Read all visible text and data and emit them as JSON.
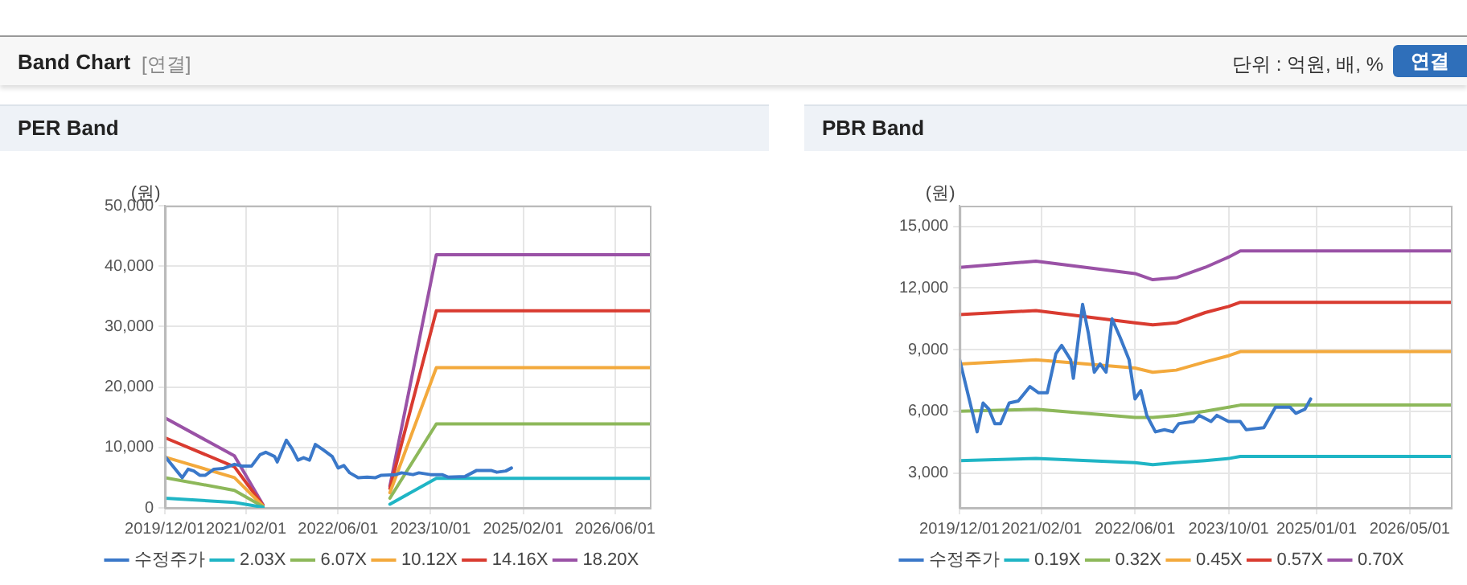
{
  "chart_data": [
    {
      "type": "other",
      "title": "Band Chart",
      "annotations": [
        "[연결]",
        "단위 : 억원, 배, %",
        "연결"
      ]
    },
    {
      "type": "line",
      "title": "PER Band",
      "ylabel": "(원)",
      "xlim": [
        "2019-12-01",
        "2026-12-01"
      ],
      "xticks": [
        {
          "value": "2019-12-01",
          "label": "2019/12/01"
        },
        {
          "value": "2021-02-01",
          "label": "2021/02/01"
        },
        {
          "value": "2022-06-01",
          "label": "2022/06/01"
        },
        {
          "value": "2023-10-01",
          "label": "2023/10/01"
        },
        {
          "value": "2025-02-01",
          "label": "2025/02/01"
        },
        {
          "value": "2026-06-01",
          "label": "2026/06/01"
        }
      ],
      "ylim": [
        0,
        50000
      ],
      "yticks": [
        0,
        {
          "value": 10000,
          "label": "10,000"
        },
        {
          "value": 20000,
          "label": "20,000"
        },
        {
          "value": 30000,
          "label": "30,000"
        },
        {
          "value": 40000,
          "label": "40,000"
        },
        {
          "value": 50000,
          "label": "50,000"
        }
      ],
      "grid": true,
      "legend": "bottom",
      "marker": "none",
      "line_style": "solid",
      "x": [
        "2019-12-01",
        "2020-12-01",
        "2021-05-01",
        "2022-04-01",
        "2023-03-01",
        "2023-11-01",
        "2026-12-01"
      ],
      "series": [
        {
          "name": "수정주가",
          "color": "#3a78c9",
          "x": [
            "2019-12-01",
            "2020-03-01",
            "2020-04-01",
            "2020-05-01",
            "2020-06-01",
            "2020-07-01",
            "2020-08-15",
            "2020-10-01",
            "2020-12-01",
            "2021-01-15",
            "2021-03-01",
            "2021-04-15",
            "2021-05-15",
            "2021-07-01",
            "2021-07-15",
            "2021-09-01",
            "2021-10-01",
            "2021-11-01",
            "2021-12-01",
            "2022-01-01",
            "2022-02-01",
            "2022-03-15",
            "2022-05-01",
            "2022-06-01",
            "2022-07-01",
            "2022-08-01",
            "2022-09-15",
            "2022-11-01",
            "2022-12-15",
            "2023-01-15",
            "2023-04-01",
            "2023-05-01",
            "2023-07-01",
            "2023-08-01",
            "2023-10-01",
            "2023-12-01",
            "2024-01-01",
            "2024-04-01",
            "2024-06-01",
            "2024-08-15",
            "2024-09-15",
            "2024-11-01",
            "2024-12-01"
          ],
          "values": [
            8500,
            5000,
            6400,
            6100,
            5400,
            5400,
            6400,
            6500,
            7200,
            6900,
            6900,
            8800,
            9200,
            8500,
            7600,
            11200,
            9800,
            7900,
            8300,
            7900,
            10500,
            9600,
            8500,
            6600,
            7000,
            5800,
            5000,
            5100,
            5000,
            5400,
            5500,
            5800,
            5500,
            5800,
            5500,
            5500,
            5100,
            5200,
            6200,
            6200,
            5900,
            6100,
            6600
          ]
        },
        {
          "name": "2.03X",
          "color": "#1fb5c5",
          "values": [
            1600,
            900,
            100,
            null,
            600,
            4900,
            4900
          ]
        },
        {
          "name": "6.07X",
          "color": "#8db85a",
          "values": [
            5000,
            2900,
            200,
            null,
            1600,
            13900,
            13900
          ]
        },
        {
          "name": "10.12X",
          "color": "#f3a93c",
          "values": [
            8400,
            5000,
            300,
            null,
            2500,
            23200,
            23200
          ]
        },
        {
          "name": "14.16X",
          "color": "#d93b30",
          "values": [
            11600,
            6800,
            400,
            null,
            3200,
            32600,
            32600
          ]
        },
        {
          "name": "18.20X",
          "color": "#9a52a6",
          "values": [
            14900,
            8600,
            500,
            null,
            3600,
            41900,
            41900
          ]
        }
      ]
    },
    {
      "type": "line",
      "title": "PBR Band",
      "ylabel": "(원)",
      "xlim": [
        "2019-12-01",
        "2026-12-01"
      ],
      "xticks": [
        {
          "value": "2019-12-01",
          "label": "2019/12/01"
        },
        {
          "value": "2021-02-01",
          "label": "2021/02/01"
        },
        {
          "value": "2022-06-01",
          "label": "2022/06/01"
        },
        {
          "value": "2023-10-01",
          "label": "2023/10/01"
        },
        {
          "value": "2025-01-01",
          "label": "2025/01/01"
        },
        {
          "value": "2026-05-01",
          "label": "2026/05/01"
        }
      ],
      "ylim": [
        1300,
        16000
      ],
      "yticks": [
        {
          "value": 3000,
          "label": "3,000"
        },
        {
          "value": 6000,
          "label": "6,000"
        },
        {
          "value": 9000,
          "label": "9,000"
        },
        {
          "value": 12000,
          "label": "12,000"
        },
        {
          "value": 15000,
          "label": "15,000"
        }
      ],
      "grid": true,
      "legend": "bottom",
      "marker": "none",
      "line_style": "solid",
      "x": [
        "2019-12-01",
        "2021-01-01",
        "2022-06-01",
        "2022-09-01",
        "2023-01-01",
        "2023-06-01",
        "2023-10-01",
        "2023-12-01",
        "2026-12-01"
      ],
      "series": [
        {
          "name": "수정주가",
          "color": "#3a78c9",
          "x": [
            "2019-12-01",
            "2020-03-01",
            "2020-04-01",
            "2020-05-01",
            "2020-06-01",
            "2020-07-01",
            "2020-08-15",
            "2020-10-01",
            "2020-12-01",
            "2021-01-15",
            "2021-03-01",
            "2021-04-15",
            "2021-05-15",
            "2021-07-01",
            "2021-07-15",
            "2021-09-01",
            "2021-10-01",
            "2021-11-01",
            "2021-12-01",
            "2022-01-01",
            "2022-02-01",
            "2022-03-15",
            "2022-05-01",
            "2022-06-01",
            "2022-07-01",
            "2022-08-01",
            "2022-09-15",
            "2022-11-01",
            "2022-12-15",
            "2023-01-15",
            "2023-04-01",
            "2023-05-01",
            "2023-07-01",
            "2023-08-01",
            "2023-10-01",
            "2023-12-01",
            "2024-01-01",
            "2024-04-01",
            "2024-06-01",
            "2024-08-15",
            "2024-09-15",
            "2024-11-01",
            "2024-12-01"
          ],
          "values": [
            8500,
            5000,
            6400,
            6100,
            5400,
            5400,
            6400,
            6500,
            7200,
            6900,
            6900,
            8800,
            9200,
            8500,
            7600,
            11200,
            9800,
            7900,
            8300,
            7900,
            10500,
            9600,
            8500,
            6600,
            7000,
            5800,
            5000,
            5100,
            5000,
            5400,
            5500,
            5800,
            5500,
            5800,
            5500,
            5500,
            5100,
            5200,
            6200,
            6200,
            5900,
            6100,
            6600
          ]
        },
        {
          "name": "0.19X",
          "color": "#1fb5c5",
          "values": [
            3600,
            3700,
            3500,
            3400,
            3500,
            3600,
            3700,
            3800,
            3800
          ]
        },
        {
          "name": "0.32X",
          "color": "#8db85a",
          "values": [
            6000,
            6100,
            5700,
            5700,
            5800,
            6000,
            6200,
            6300,
            6300
          ]
        },
        {
          "name": "0.45X",
          "color": "#f3a93c",
          "values": [
            8300,
            8500,
            8100,
            7900,
            8000,
            8400,
            8700,
            8900,
            8900
          ]
        },
        {
          "name": "0.57X",
          "color": "#d93b30",
          "values": [
            10700,
            10900,
            10300,
            10200,
            10300,
            10800,
            11100,
            11300,
            11300
          ]
        },
        {
          "name": "0.70X",
          "color": "#9a52a6",
          "values": [
            13000,
            13300,
            12700,
            12400,
            12500,
            13000,
            13500,
            13800,
            13800
          ]
        }
      ]
    }
  ]
}
